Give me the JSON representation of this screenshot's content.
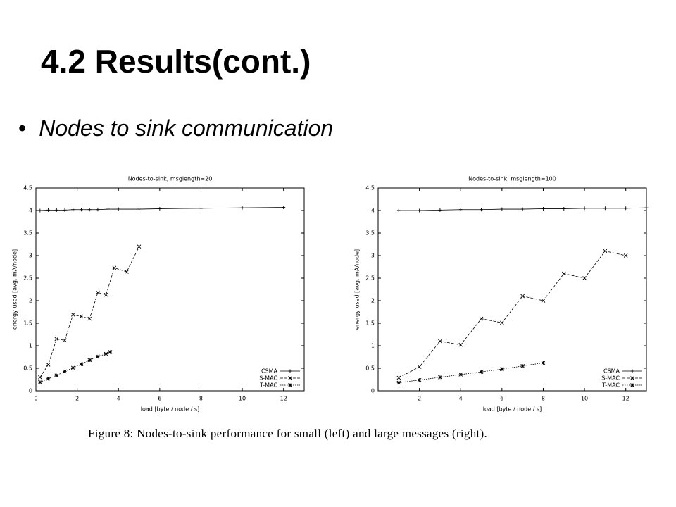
{
  "title": "4.2 Results(cont.)",
  "bullet": "Nodes to sink communication",
  "caption": "Figure 8: Nodes-to-sink performance for small (left) and large messages (right).",
  "chart_data": [
    {
      "type": "line",
      "title": "Nodes-to-sink, msglength=20",
      "x_label": "load [byte / node / s]",
      "y_label": "energy used [avg. mA/node]",
      "xlim": [
        0,
        13
      ],
      "ylim": [
        0,
        4.5
      ],
      "xticks": [
        0,
        2,
        4,
        6,
        8,
        10,
        12
      ],
      "yticks": [
        0,
        0.5,
        1,
        1.5,
        2,
        2.5,
        3,
        3.5,
        4,
        4.5
      ],
      "legend": "lower right",
      "series": [
        {
          "name": "CSMA",
          "color": "#000000",
          "dash": "solid",
          "marker": "+",
          "x": [
            0.2,
            0.6,
            1.0,
            1.4,
            1.8,
            2.2,
            2.6,
            3.0,
            3.5,
            4.0,
            5.0,
            6.0,
            8.0,
            10.0,
            12.0
          ],
          "values": [
            4.0,
            4.01,
            4.01,
            4.01,
            4.02,
            4.02,
            4.02,
            4.02,
            4.03,
            4.03,
            4.03,
            4.04,
            4.05,
            4.06,
            4.07
          ]
        },
        {
          "name": "S-MAC",
          "color": "#000000",
          "dash": "dashed",
          "marker": "x",
          "x": [
            0.2,
            0.6,
            1.0,
            1.4,
            1.8,
            2.2,
            2.6,
            3.0,
            3.4,
            3.8,
            4.4,
            5.0
          ],
          "values": [
            0.3,
            0.58,
            1.15,
            1.12,
            1.69,
            1.65,
            1.6,
            2.18,
            2.13,
            2.73,
            2.64,
            3.2
          ]
        },
        {
          "name": "T-MAC",
          "color": "#000000",
          "dash": "dotted",
          "marker": "*",
          "x": [
            0.2,
            0.6,
            1.0,
            1.4,
            1.8,
            2.2,
            2.6,
            3.0,
            3.4,
            3.6
          ],
          "values": [
            0.19,
            0.27,
            0.34,
            0.43,
            0.51,
            0.59,
            0.68,
            0.76,
            0.82,
            0.86
          ]
        }
      ]
    },
    {
      "type": "line",
      "title": "Nodes-to-sink, msglength=100",
      "x_label": "load [byte / node / s]",
      "y_label": "energy used [avg. mA/node]",
      "xlim": [
        0,
        13
      ],
      "ylim": [
        0,
        4.5
      ],
      "xticks": [
        2,
        4,
        6,
        8,
        10,
        12
      ],
      "yticks": [
        0,
        0.5,
        1,
        1.5,
        2,
        2.5,
        3,
        3.5,
        4,
        4.5
      ],
      "legend": "lower right",
      "series": [
        {
          "name": "CSMA",
          "color": "#000000",
          "dash": "solid",
          "marker": "+",
          "x": [
            1,
            2,
            3,
            4,
            5,
            6,
            7,
            8,
            9,
            10,
            11,
            12,
            13
          ],
          "values": [
            4.0,
            4.0,
            4.01,
            4.02,
            4.02,
            4.03,
            4.03,
            4.04,
            4.04,
            4.05,
            4.05,
            4.05,
            4.06
          ]
        },
        {
          "name": "S-MAC",
          "color": "#000000",
          "dash": "dashed",
          "marker": "x",
          "x": [
            1,
            2,
            3,
            4,
            5,
            6,
            7,
            8,
            9,
            10,
            11,
            12
          ],
          "values": [
            0.29,
            0.53,
            1.1,
            1.02,
            1.6,
            1.51,
            2.1,
            2.0,
            2.6,
            2.5,
            3.1,
            3.0
          ]
        },
        {
          "name": "T-MAC",
          "color": "#000000",
          "dash": "dotted",
          "marker": "*",
          "x": [
            1,
            2,
            3,
            4,
            5,
            6,
            7,
            8
          ],
          "values": [
            0.18,
            0.24,
            0.3,
            0.36,
            0.42,
            0.48,
            0.55,
            0.62
          ]
        }
      ]
    }
  ]
}
